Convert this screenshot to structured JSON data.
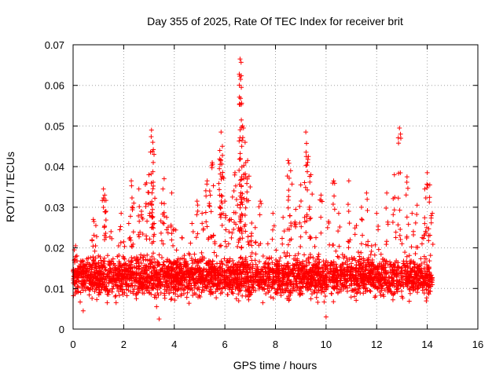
{
  "chart_data": {
    "type": "scatter",
    "title": "Day 355 of 2025, Rate Of TEC Index for receiver brit",
    "xlabel": "GPS time / hours",
    "ylabel": "ROTI / TECUs",
    "xlim": [
      0,
      16
    ],
    "ylim": [
      0,
      0.07
    ],
    "x_ticks": [
      "0",
      "2",
      "4",
      "6",
      "8",
      "10",
      "12",
      "14",
      "16"
    ],
    "y_ticks": [
      "0",
      "0.01",
      "0.02",
      "0.03",
      "0.04",
      "0.05",
      "0.06",
      "0.07"
    ],
    "grid": true,
    "marker": "+",
    "color": "#ff0000",
    "series": [
      {
        "name": "ROTI",
        "points": [
          [
            0.05,
            0.0195
          ],
          [
            0.1,
            0.0205
          ],
          [
            0.2,
            0.012
          ],
          [
            0.3,
            0.009
          ],
          [
            0.4,
            0.0045
          ],
          [
            0.5,
            0.013
          ],
          [
            0.6,
            0.0175
          ],
          [
            0.75,
            0.022
          ],
          [
            0.8,
            0.027
          ],
          [
            0.9,
            0.0255
          ],
          [
            1.0,
            0.018
          ],
          [
            1.1,
            0.0105
          ],
          [
            1.2,
            0.0345
          ],
          [
            1.25,
            0.033
          ],
          [
            1.3,
            0.029
          ],
          [
            1.4,
            0.0085
          ],
          [
            1.5,
            0.024
          ],
          [
            1.6,
            0.016
          ],
          [
            1.7,
            0.0065
          ],
          [
            1.8,
            0.0205
          ],
          [
            1.9,
            0.0285
          ],
          [
            2.0,
            0.0215
          ],
          [
            2.1,
            0.0105
          ],
          [
            2.2,
            0.026
          ],
          [
            2.3,
            0.0365
          ],
          [
            2.4,
            0.031
          ],
          [
            2.5,
            0.0075
          ],
          [
            2.6,
            0.0345
          ],
          [
            2.7,
            0.029
          ],
          [
            2.8,
            0.018
          ],
          [
            2.9,
            0.036
          ],
          [
            3.0,
            0.038
          ],
          [
            3.1,
            0.049
          ],
          [
            3.15,
            0.046
          ],
          [
            3.2,
            0.043
          ],
          [
            3.3,
            0.0055
          ],
          [
            3.4,
            0.0025
          ],
          [
            3.5,
            0.031
          ],
          [
            3.6,
            0.037
          ],
          [
            3.7,
            0.0275
          ],
          [
            3.8,
            0.0125
          ],
          [
            3.9,
            0.0335
          ],
          [
            4.0,
            0.0245
          ],
          [
            4.1,
            0.0165
          ],
          [
            4.3,
            0.0225
          ],
          [
            4.5,
            0.0105
          ],
          [
            4.7,
            0.026
          ],
          [
            4.9,
            0.0315
          ],
          [
            5.1,
            0.0285
          ],
          [
            5.3,
            0.0365
          ],
          [
            5.4,
            0.034
          ],
          [
            5.5,
            0.041
          ],
          [
            5.6,
            0.0215
          ],
          [
            5.8,
            0.044
          ],
          [
            5.85,
            0.0485
          ],
          [
            5.9,
            0.045
          ],
          [
            6.0,
            0.0315
          ],
          [
            6.1,
            0.0085
          ],
          [
            6.2,
            0.027
          ],
          [
            6.3,
            0.0325
          ],
          [
            6.4,
            0.0385
          ],
          [
            6.5,
            0.0305
          ],
          [
            6.6,
            0.0665
          ],
          [
            6.62,
            0.0615
          ],
          [
            6.65,
            0.0595
          ],
          [
            6.7,
            0.05
          ],
          [
            6.8,
            0.046
          ],
          [
            6.9,
            0.0415
          ],
          [
            7.0,
            0.035
          ],
          [
            7.2,
            0.025
          ],
          [
            7.4,
            0.0315
          ],
          [
            7.5,
            0.0065
          ],
          [
            7.7,
            0.021
          ],
          [
            7.9,
            0.0285
          ],
          [
            8.1,
            0.0125
          ],
          [
            8.3,
            0.0275
          ],
          [
            8.5,
            0.0415
          ],
          [
            8.6,
            0.039
          ],
          [
            8.8,
            0.0295
          ],
          [
            9.0,
            0.0355
          ],
          [
            9.1,
            0.0125
          ],
          [
            9.2,
            0.0485
          ],
          [
            9.3,
            0.0425
          ],
          [
            9.4,
            0.038
          ],
          [
            9.6,
            0.0225
          ],
          [
            9.8,
            0.033
          ],
          [
            10.0,
            0.003
          ],
          [
            10.1,
            0.0265
          ],
          [
            10.3,
            0.0365
          ],
          [
            10.5,
            0.0285
          ],
          [
            10.7,
            0.0175
          ],
          [
            10.9,
            0.0365
          ],
          [
            11.0,
            0.0095
          ],
          [
            11.2,
            0.0255
          ],
          [
            11.4,
            0.03
          ],
          [
            11.6,
            0.0335
          ],
          [
            11.8,
            0.0205
          ],
          [
            12.0,
            0.0285
          ],
          [
            12.2,
            0.0155
          ],
          [
            12.4,
            0.0335
          ],
          [
            12.5,
            0.0095
          ],
          [
            12.7,
            0.038
          ],
          [
            12.9,
            0.0495
          ],
          [
            13.0,
            0.021
          ],
          [
            13.2,
            0.0375
          ],
          [
            13.4,
            0.0285
          ],
          [
            13.6,
            0.0305
          ],
          [
            13.8,
            0.0225
          ],
          [
            13.9,
            0.0345
          ],
          [
            14.0,
            0.0385
          ],
          [
            14.1,
            0.0355
          ],
          [
            14.2,
            0.0285
          ]
        ],
        "bulk_band": {
          "x_range": [
            0,
            14.2
          ],
          "typical_range": [
            0.006,
            0.02
          ],
          "median": 0.013
        }
      }
    ]
  }
}
